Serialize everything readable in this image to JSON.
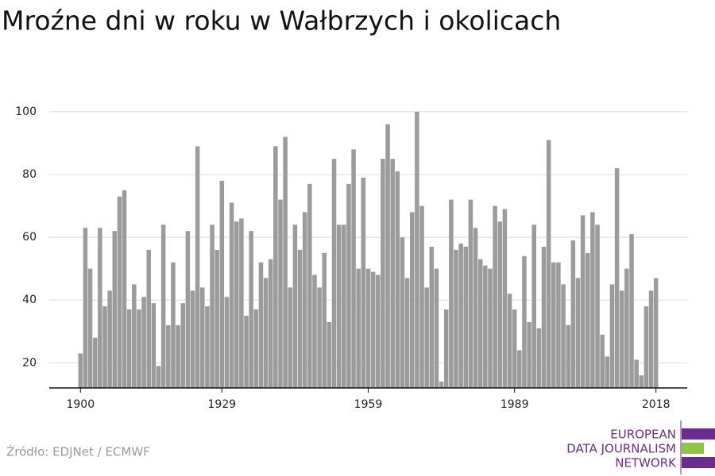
{
  "chart_data": {
    "type": "bar",
    "title": "Mroźne dni w roku w Wałbrzych i okolicach",
    "x": [
      1900,
      1901,
      1902,
      1903,
      1904,
      1905,
      1906,
      1907,
      1908,
      1909,
      1910,
      1911,
      1912,
      1913,
      1914,
      1915,
      1916,
      1917,
      1918,
      1919,
      1920,
      1921,
      1922,
      1923,
      1924,
      1925,
      1926,
      1927,
      1928,
      1929,
      1930,
      1931,
      1932,
      1933,
      1934,
      1935,
      1936,
      1937,
      1938,
      1939,
      1940,
      1941,
      1942,
      1943,
      1944,
      1945,
      1946,
      1947,
      1948,
      1949,
      1950,
      1951,
      1952,
      1953,
      1954,
      1955,
      1956,
      1957,
      1958,
      1959,
      1960,
      1961,
      1962,
      1963,
      1964,
      1965,
      1966,
      1967,
      1968,
      1969,
      1970,
      1971,
      1972,
      1973,
      1974,
      1975,
      1976,
      1977,
      1978,
      1979,
      1980,
      1981,
      1982,
      1983,
      1984,
      1985,
      1986,
      1987,
      1988,
      1989,
      1990,
      1991,
      1992,
      1993,
      1994,
      1995,
      1996,
      1997,
      1998,
      1999,
      2000,
      2001,
      2002,
      2003,
      2004,
      2005,
      2006,
      2007,
      2008,
      2009,
      2010,
      2011,
      2012,
      2013,
      2014,
      2015,
      2016,
      2017,
      2018
    ],
    "values": [
      23,
      63,
      50,
      28,
      63,
      38,
      43,
      62,
      73,
      75,
      37,
      45,
      37,
      41,
      56,
      39,
      19,
      64,
      32,
      52,
      32,
      39,
      62,
      43,
      89,
      44,
      38,
      64,
      56,
      78,
      41,
      71,
      65,
      66,
      35,
      62,
      37,
      52,
      47,
      53,
      89,
      72,
      92,
      44,
      64,
      56,
      68,
      77,
      48,
      44,
      55,
      33,
      85,
      64,
      64,
      77,
      88,
      50,
      79,
      50,
      49,
      48,
      85,
      96,
      85,
      81,
      60,
      47,
      68,
      100,
      70,
      44,
      57,
      50,
      14,
      37,
      72,
      56,
      58,
      57,
      72,
      63,
      53,
      51,
      50,
      70,
      65,
      69,
      42,
      37,
      24,
      54,
      33,
      64,
      31,
      57,
      91,
      52,
      52,
      45,
      32,
      59,
      47,
      67,
      55,
      68,
      64,
      29,
      22,
      45,
      82,
      43,
      50,
      61,
      21,
      16,
      38,
      43,
      47
    ],
    "color": "#9b9b9b",
    "xlim": [
      1893.6,
      2024.4
    ],
    "xticks": [
      1900,
      1929,
      1959,
      1989,
      2018
    ],
    "ylim": [
      12,
      103
    ],
    "yticks": [
      20,
      40,
      60,
      80,
      100
    ],
    "grid": true
  },
  "source": "Źródło: EDJNet / ECMWF",
  "logo": [
    "EUROPEAN",
    "DATA JOURNALISM",
    "NETWORK"
  ]
}
